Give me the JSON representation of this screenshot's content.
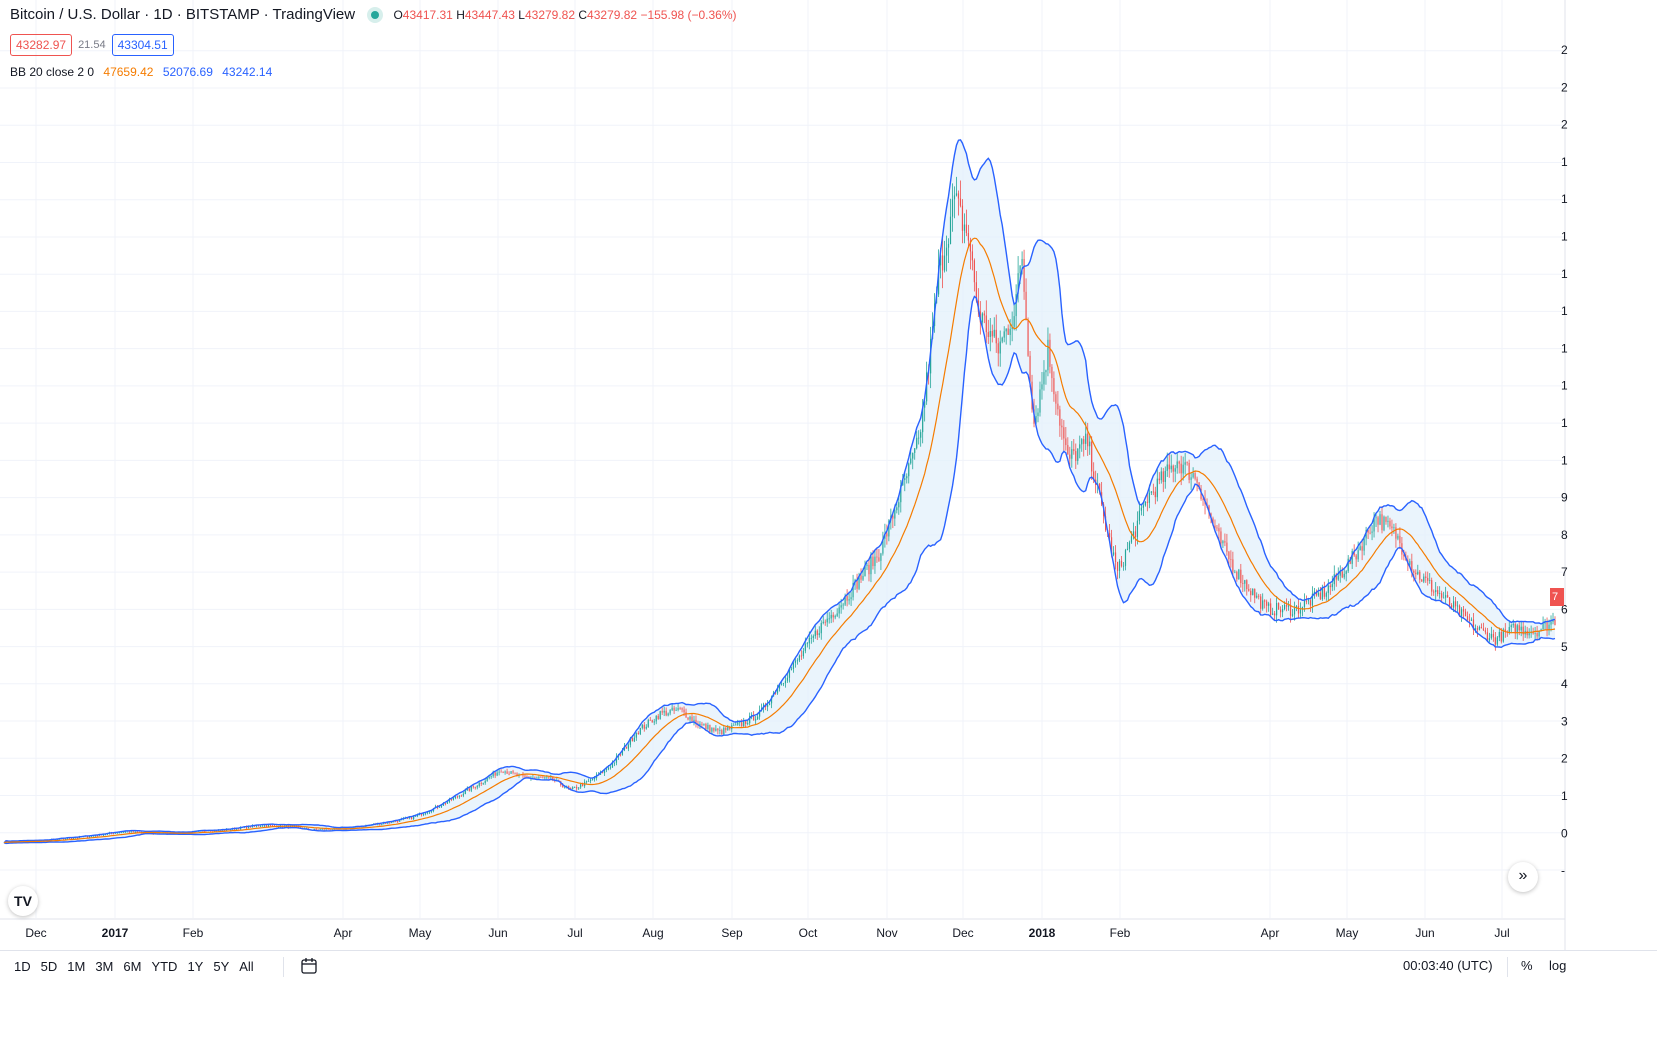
{
  "header": {
    "symbol": "Bitcoin / U.S. Dollar · 1D · BITSTAMP · TradingView",
    "open_label": "O",
    "open": "43417.31",
    "high_label": "H",
    "high": "43447.43",
    "low_label": "L",
    "low": "43279.82",
    "close_label": "C",
    "close": "43279.82",
    "change": "−155.98 (−0.36%)",
    "bid": "43282.97",
    "spread": "21.54",
    "ask": "43304.51",
    "bb_label": "BB 20 close 2 0",
    "bb_basis": "47659.42",
    "bb_upper": "52076.69",
    "bb_lower": "43242.14",
    "last_price_tag": "7"
  },
  "bottom_bar": {
    "ranges": [
      "1D",
      "5D",
      "1M",
      "3M",
      "6M",
      "YTD",
      "1Y",
      "5Y",
      "All"
    ],
    "clock": "00:03:40 (UTC)",
    "percent": "%",
    "log": "log"
  },
  "icons": {
    "logo": "tradingview-logo-icon",
    "scroll": "scroll-to-realtime-icon",
    "calendar": "go-to-date-icon"
  },
  "colors": {
    "up": "#26a69a",
    "down": "#ef5350",
    "basis": "#f57c00",
    "bands": "#2962ff",
    "band_fill": "#e3f0fb"
  },
  "chart_data": {
    "type": "candlestick",
    "indicator": "Bollinger Bands (20, 2)",
    "x_ticks": [
      "Dec",
      "2017",
      "Feb",
      "Apr",
      "May",
      "Jun",
      "Jul",
      "Aug",
      "Sep",
      "Oct",
      "Nov",
      "Dec",
      "2018",
      "Feb",
      "Apr",
      "May",
      "Jun",
      "Jul"
    ],
    "y_tick_labels": [
      "2",
      "2",
      "2",
      "1",
      "1",
      "1",
      "1",
      "1",
      "1",
      "1",
      "1",
      "1",
      "9",
      "8",
      "7",
      "6",
      "5",
      "4",
      "3",
      "2",
      "1",
      "0",
      "-"
    ],
    "ylim": [
      -1000,
      23000
    ],
    "price_path": [
      [
        0,
        750
      ],
      [
        20,
        790
      ],
      [
        45,
        920
      ],
      [
        60,
        1030
      ],
      [
        75,
        980
      ],
      [
        90,
        1000
      ],
      [
        110,
        1070
      ],
      [
        130,
        1200
      ],
      [
        145,
        1150
      ],
      [
        155,
        1080
      ],
      [
        175,
        1130
      ],
      [
        190,
        1250
      ],
      [
        205,
        1400
      ],
      [
        220,
        1750
      ],
      [
        235,
        2200
      ],
      [
        250,
        2700
      ],
      [
        260,
        2500
      ],
      [
        275,
        2450
      ],
      [
        285,
        2150
      ],
      [
        295,
        2400
      ],
      [
        305,
        2800
      ],
      [
        318,
        3700
      ],
      [
        330,
        4200
      ],
      [
        340,
        4300
      ],
      [
        350,
        3900
      ],
      [
        360,
        3700
      ],
      [
        370,
        3900
      ],
      [
        380,
        4200
      ],
      [
        390,
        5000
      ],
      [
        400,
        5700
      ],
      [
        410,
        6500
      ],
      [
        420,
        7100
      ],
      [
        430,
        7800
      ],
      [
        440,
        8500
      ],
      [
        450,
        10000
      ],
      [
        460,
        11500
      ],
      [
        470,
        16000
      ],
      [
        478,
        18000
      ],
      [
        485,
        17000
      ],
      [
        490,
        15000
      ],
      [
        500,
        14000
      ],
      [
        508,
        15000
      ],
      [
        512,
        16500
      ],
      [
        518,
        12000
      ],
      [
        525,
        14000
      ],
      [
        535,
        11000
      ],
      [
        545,
        11500
      ],
      [
        560,
        8000
      ],
      [
        575,
        10000
      ],
      [
        590,
        11000
      ],
      [
        600,
        10500
      ],
      [
        610,
        9000
      ],
      [
        620,
        8000
      ],
      [
        635,
        7000
      ],
      [
        650,
        7000
      ],
      [
        665,
        7500
      ],
      [
        680,
        8500
      ],
      [
        690,
        9500
      ],
      [
        700,
        9000
      ],
      [
        710,
        8000
      ],
      [
        720,
        7500
      ],
      [
        730,
        7000
      ],
      [
        740,
        6500
      ],
      [
        750,
        6200
      ],
      [
        760,
        6500
      ],
      [
        770,
        6400
      ],
      [
        780,
        6700
      ]
    ]
  }
}
